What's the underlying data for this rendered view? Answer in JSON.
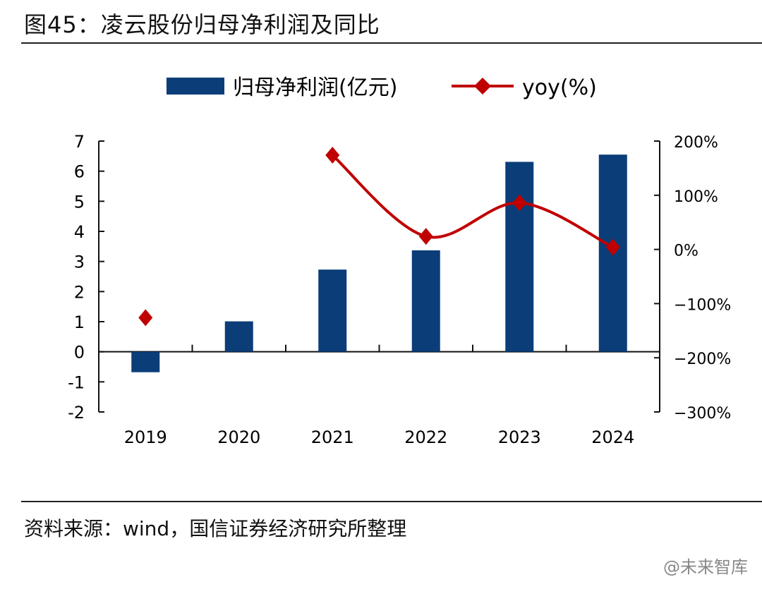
{
  "title": "图45：凌云股份归母净利润及同比",
  "source": "资料来源：wind，国信证券经济研究所整理",
  "watermark": "@未来智库",
  "chart_data": {
    "type": "bar+line",
    "categories": [
      "2019",
      "2020",
      "2021",
      "2022",
      "2023",
      "2024"
    ],
    "series": [
      {
        "name": "归母净利润(亿元)",
        "type": "bar",
        "axis": "left",
        "color": "#0b3d78",
        "values": [
          -0.68,
          1.01,
          2.73,
          3.37,
          6.31,
          6.55
        ]
      },
      {
        "name": "yoy(%)",
        "type": "line",
        "axis": "right",
        "color": "#c00000",
        "marker": "diamond",
        "smooth": true,
        "values": [
          -126,
          null,
          174,
          24,
          86,
          4
        ]
      }
    ],
    "left_axis": {
      "ylim": [
        -2,
        7
      ],
      "ticks": [
        "7",
        "6",
        "5",
        "4",
        "3",
        "2",
        "1",
        "0",
        "-1",
        "-2"
      ]
    },
    "right_axis": {
      "ylim": [
        -300,
        200
      ],
      "ticks": [
        "200%",
        "100%",
        "0%",
        "-100%",
        "-200%",
        "-300%"
      ]
    },
    "legend": "top-center",
    "grid": false
  }
}
